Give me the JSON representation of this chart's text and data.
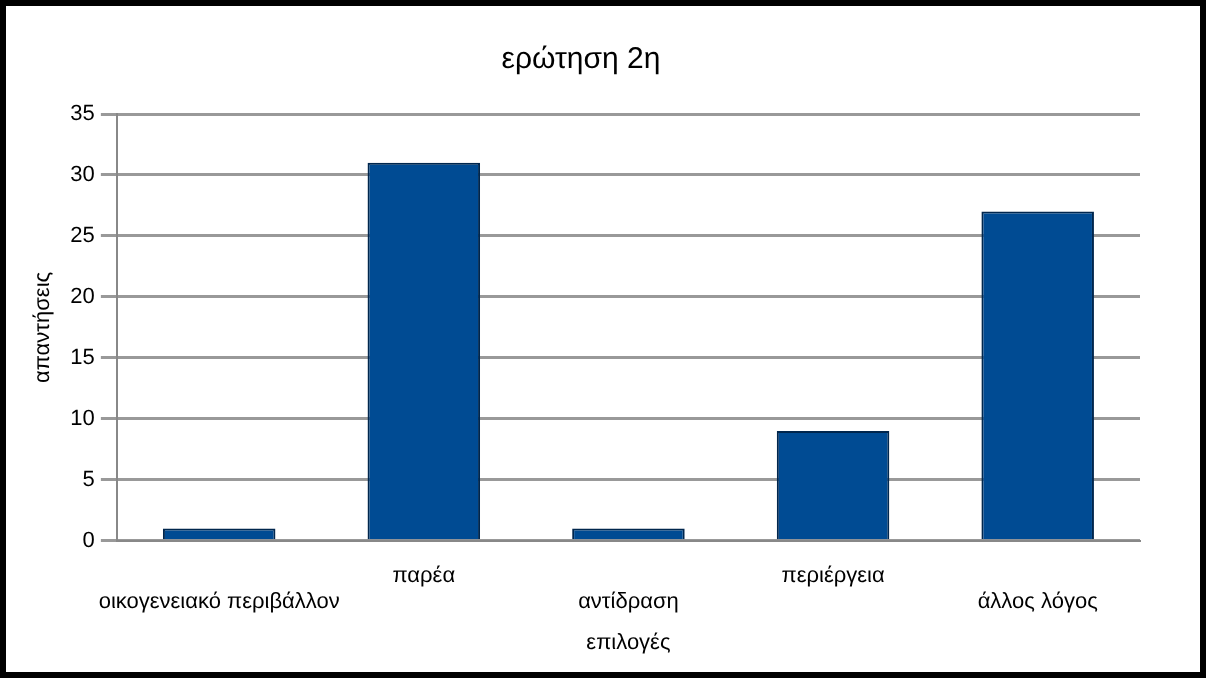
{
  "chart_data": {
    "type": "bar",
    "title": "ερώτηση 2η",
    "xlabel": "επιλογές",
    "ylabel": "απαντήσεις",
    "categories": [
      "οικογενειακό περιβάλλον",
      "παρέα",
      "αντίδραση",
      "περιέργεια",
      "άλλος λόγος"
    ],
    "values": [
      1,
      31,
      1,
      9,
      27
    ],
    "color": "#004b93",
    "ylim": [
      0,
      35
    ],
    "yticks": [
      0,
      5,
      10,
      15,
      20,
      25,
      30,
      35
    ],
    "grid": "y",
    "legend": false
  }
}
